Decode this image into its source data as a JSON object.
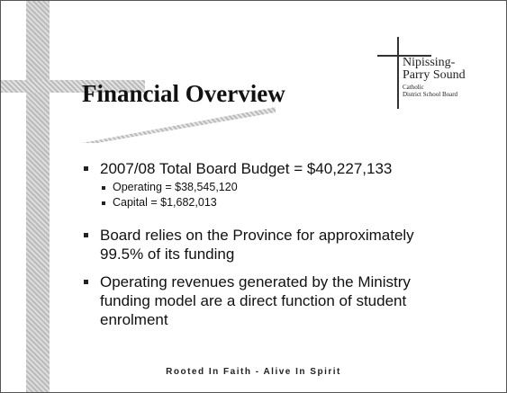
{
  "slide": {
    "title": "Financial Overview",
    "logo": {
      "lines": [
        "Nipissing-",
        "Parry Sound",
        "Catholic",
        "District School Board"
      ]
    },
    "bullets": [
      {
        "text": "2007/08 Total Board Budget = $40,227,133",
        "sub": [
          "Operating = $38,545,120",
          "Capital = $1,682,013"
        ]
      },
      {
        "text": "Board relies on the Province for approximately 99.5% of its funding"
      },
      {
        "text": "Operating revenues generated by the Ministry funding model are a direct function of student enrolment"
      }
    ],
    "footer": "Rooted In Faith - Alive In Spirit"
  }
}
